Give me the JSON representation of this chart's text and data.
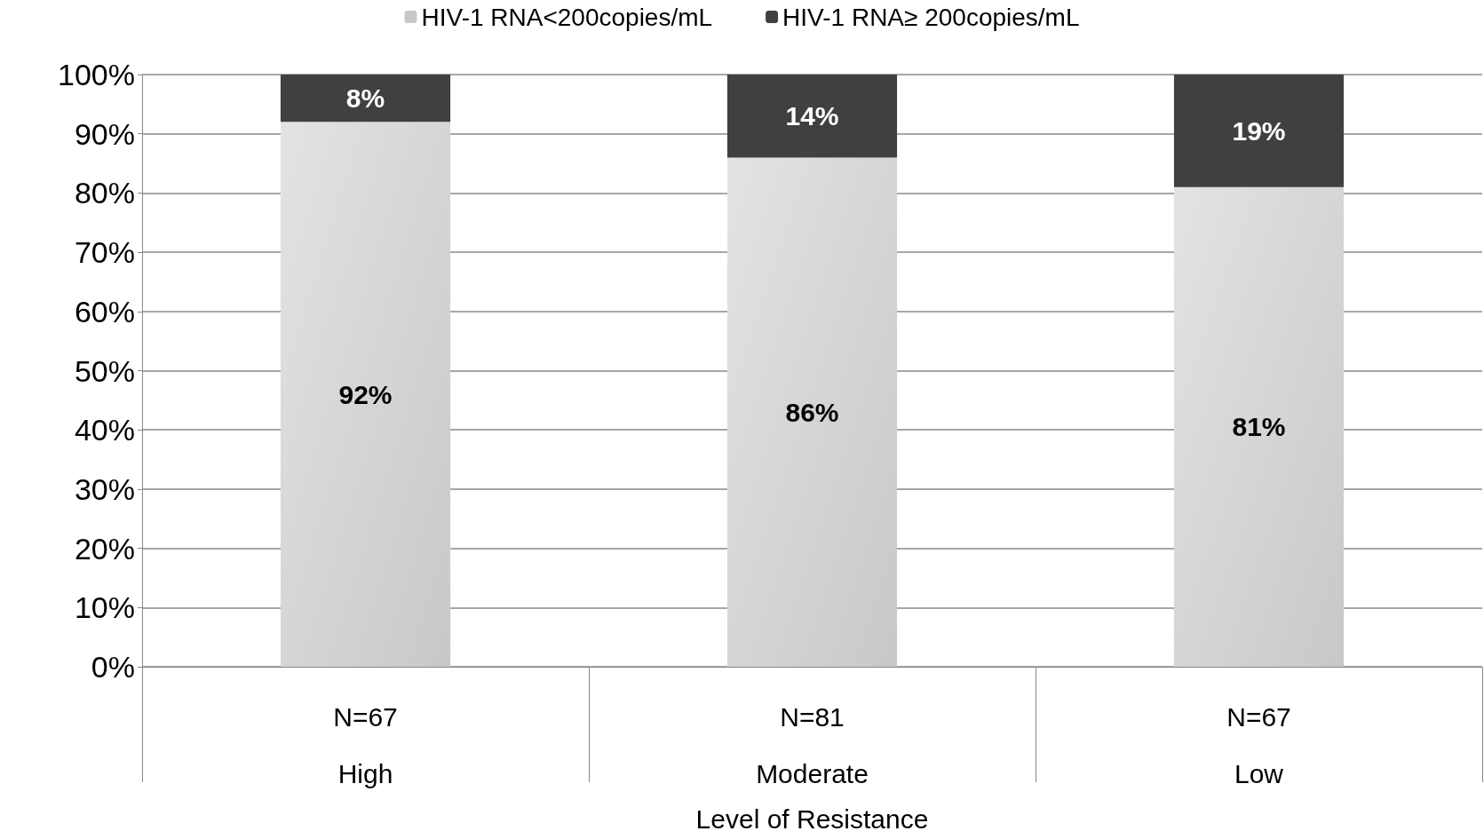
{
  "chart_data": {
    "type": "bar",
    "stacked": true,
    "xlabel": "Level of Resistance",
    "categories": [
      "N=67\nHigh",
      "N=81\nModerate",
      "N=67\nLow"
    ],
    "series": [
      {
        "name": "HIV-1 RNA<200copies/mL",
        "color": "#c8c8c8",
        "values": [
          92,
          86,
          81
        ],
        "value_labels": [
          "92%",
          "86%",
          "81%"
        ]
      },
      {
        "name": "HIV-1 RNA≥ 200copies/mL",
        "color": "#404040",
        "values": [
          8,
          14,
          19
        ],
        "value_labels": [
          "8%",
          "14%",
          "19%"
        ]
      }
    ],
    "ylim": [
      0,
      100
    ],
    "yticks": [
      {
        "value": 0,
        "label": "0%"
      },
      {
        "value": 10,
        "label": "10%"
      },
      {
        "value": 20,
        "label": "20%"
      },
      {
        "value": 30,
        "label": "30%"
      },
      {
        "value": 40,
        "label": "40%"
      },
      {
        "value": 50,
        "label": "50%"
      },
      {
        "value": 60,
        "label": "60%"
      },
      {
        "value": 70,
        "label": "70%"
      },
      {
        "value": 80,
        "label": "80%"
      },
      {
        "value": 90,
        "label": "90%"
      },
      {
        "value": 100,
        "label": "100%"
      }
    ],
    "grid": "y",
    "legend": "top"
  }
}
